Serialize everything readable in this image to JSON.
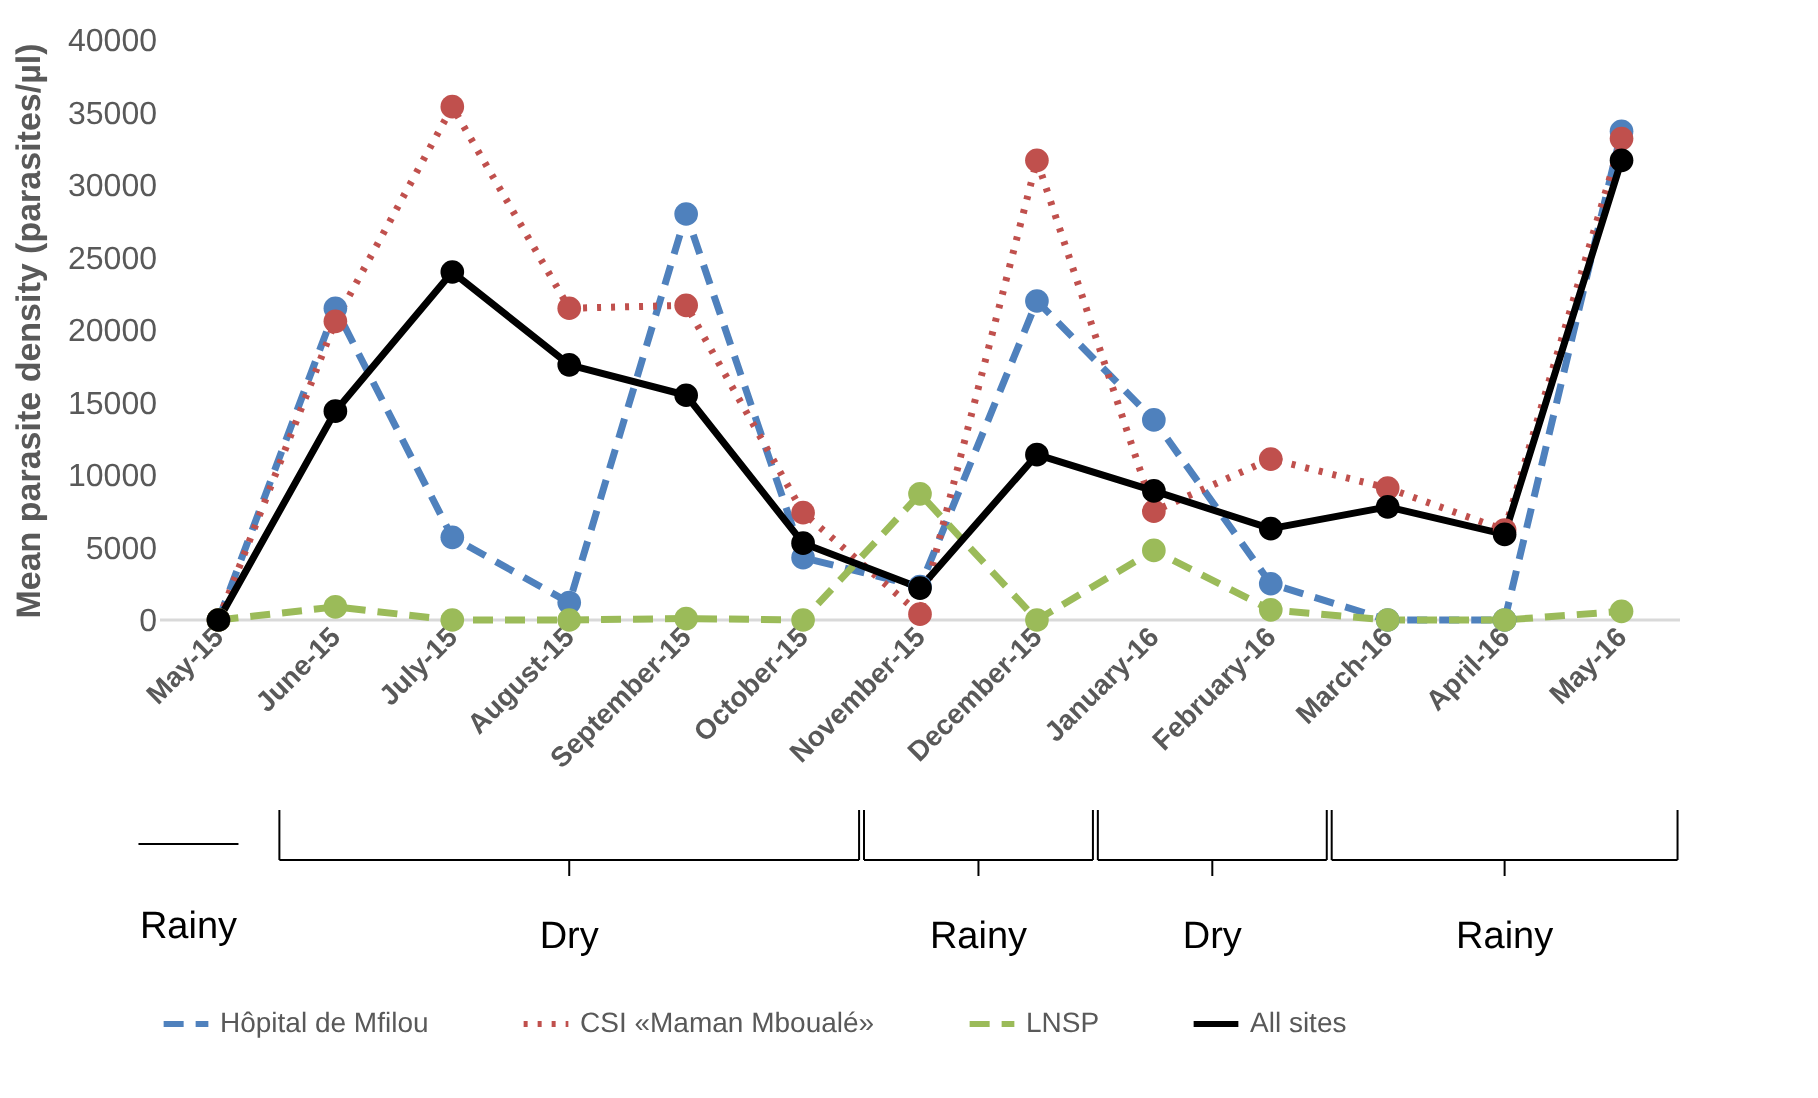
{
  "chart_data": {
    "type": "line",
    "ylabel": "Mean parasite density (parasites/µl)",
    "categories": [
      "May-15",
      "June-15",
      "July-15",
      "August-15",
      "September-15",
      "October-15",
      "November-15",
      "December-15",
      "January-16",
      "February-16",
      "March-16",
      "April-16",
      "May-16"
    ],
    "series": [
      {
        "name": "Hôpital de Mfilou",
        "color": "#4f81bd",
        "line_style": "dashed",
        "values": [
          0,
          21500,
          5700,
          1200,
          28000,
          4300,
          2300,
          22000,
          13800,
          2500,
          0,
          0,
          33700
        ]
      },
      {
        "name": "CSI «Maman Mboualé»",
        "color": "#c0504d",
        "line_style": "dotted",
        "values": [
          0,
          20600,
          35400,
          21500,
          21700,
          7400,
          400,
          31700,
          7500,
          11100,
          9100,
          6200,
          33200
        ]
      },
      {
        "name": "LNSP",
        "color": "#9bbb59",
        "line_style": "dashed",
        "values": [
          0,
          900,
          0,
          0,
          100,
          0,
          8700,
          0,
          4800,
          700,
          0,
          0,
          600
        ]
      },
      {
        "name": "All sites",
        "color": "#000000",
        "line_style": "solid",
        "values": [
          0,
          14400,
          24000,
          17600,
          15500,
          5300,
          2200,
          11400,
          8900,
          6300,
          7800,
          5900,
          31700
        ]
      }
    ],
    "ylim": [
      0,
      40000
    ],
    "yticks": [
      0,
      5000,
      10000,
      15000,
      20000,
      25000,
      30000,
      35000,
      40000
    ],
    "grid": false,
    "marker": "circle",
    "legend": "bottom",
    "annotations": [
      "Rainy",
      "Dry",
      "Rainy",
      "Dry",
      "Rainy"
    ]
  }
}
